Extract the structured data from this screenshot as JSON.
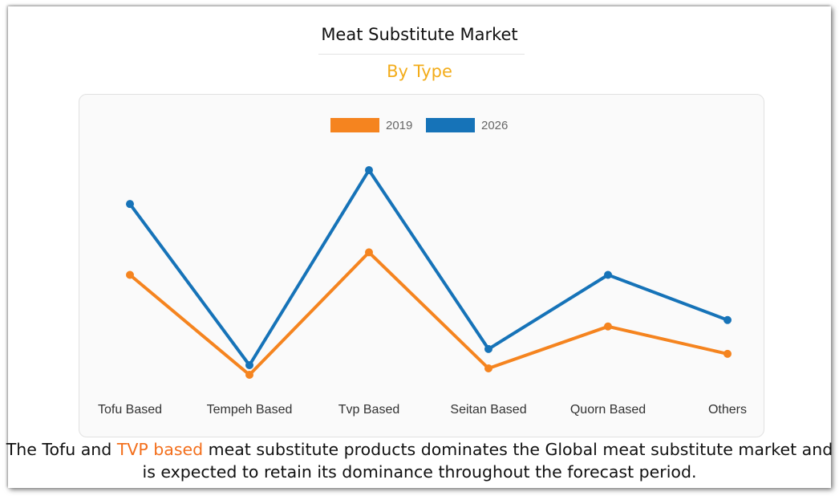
{
  "header": {
    "title": "Meat Substitute Market",
    "subtitle": "By Type"
  },
  "chart_data": {
    "type": "line",
    "title": "",
    "categories": [
      "Tofu Based",
      "Tempeh Based",
      "Tvp Based",
      "Seitan Based",
      "Quorn Based",
      "Others"
    ],
    "series": [
      {
        "name": "2019",
        "color": "#f5841f",
        "values": [
          6.2,
          0.0,
          7.6,
          0.4,
          3.0,
          1.3
        ]
      },
      {
        "name": "2026",
        "color": "#1673b8",
        "values": [
          10.6,
          0.6,
          12.7,
          1.6,
          6.2,
          3.4
        ]
      }
    ],
    "xlabel": "",
    "ylabel": "",
    "ylim": [
      0,
      13
    ],
    "legend": "top-center",
    "grid": false
  },
  "caption": {
    "part1": "The Tofu and ",
    "highlight": "TVP based",
    "part2": " meat substitute products dominates the Global meat substitute market and is expected to retain its dominance throughout the forecast period."
  }
}
